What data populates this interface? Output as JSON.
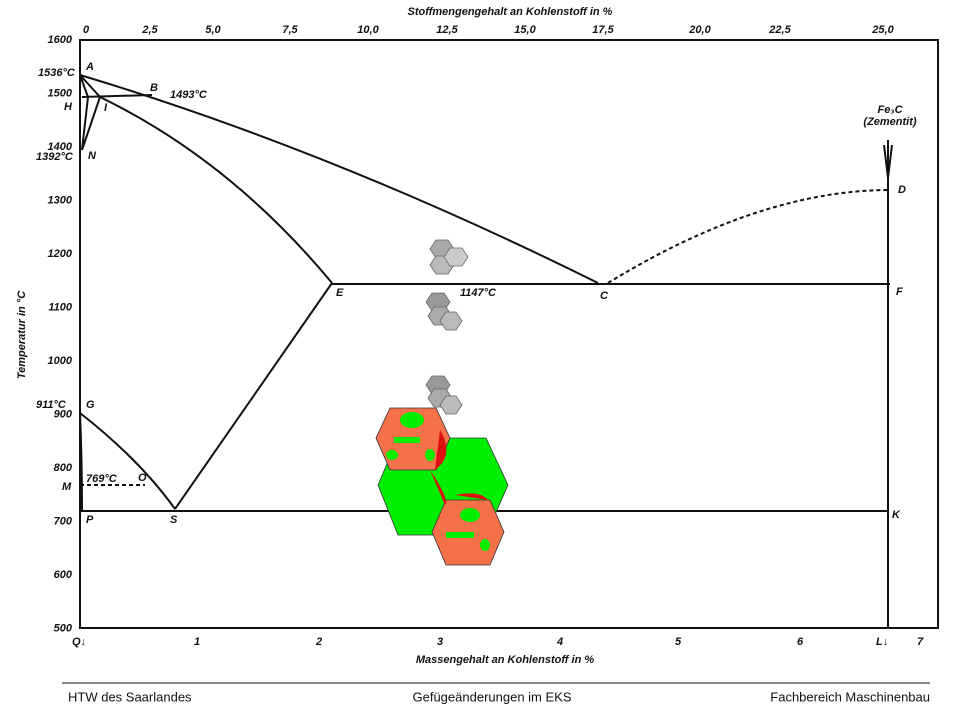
{
  "diagram": {
    "top_axis": {
      "title": "Stoffmengengehalt an Kohlenstoff in %",
      "ticks": [
        "0",
        "2,5",
        "5,0",
        "7,5",
        "10,0",
        "12,5",
        "15,0",
        "17,5",
        "20,0",
        "22,5",
        "25,0"
      ]
    },
    "bottom_axis": {
      "title": "Massengehalt an Kohlenstoff in %",
      "ticks": [
        "1",
        "2",
        "3",
        "4",
        "5",
        "6",
        "7"
      ]
    },
    "left_axis": {
      "title": "Temperatur in °C",
      "ticks": [
        "1600",
        "1500",
        "1400",
        "1300",
        "1200",
        "1100",
        "1000",
        "900",
        "800",
        "700",
        "600",
        "500"
      ]
    },
    "points": [
      "A",
      "B",
      "H",
      "I",
      "N",
      "E",
      "C",
      "F",
      "D",
      "G",
      "M",
      "O",
      "P",
      "S",
      "K",
      "Q↓",
      "L↓"
    ],
    "temperatures": [
      "1536°C",
      "1493°C",
      "1392°C",
      "1147°C",
      "911°C",
      "769°C"
    ],
    "phase": "Fe₃C\n(Zementit)"
  },
  "footer": {
    "left": "HTW des Saarlandes",
    "center": "Gefügeänderungen im EKS",
    "right": "Fachbereich Maschinenbau"
  }
}
